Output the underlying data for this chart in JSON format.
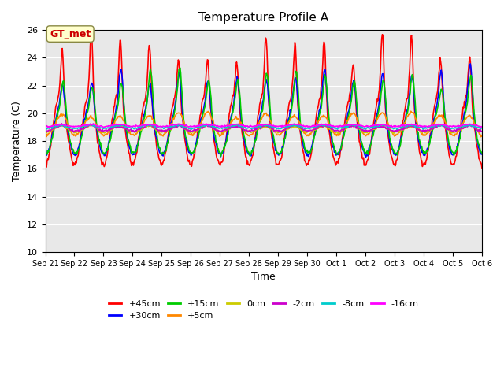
{
  "title": "Temperature Profile A",
  "xlabel": "Time",
  "ylabel": "Temperature (C)",
  "ylim": [
    10,
    26
  ],
  "xlim_days": 15,
  "annotation": "GT_met",
  "annotation_color": "#cc0000",
  "annotation_bg": "#ffffcc",
  "background_color": "#e8e8e8",
  "series": [
    {
      "label": "+45cm",
      "color": "#ff0000",
      "lw": 1.2
    },
    {
      "label": "+30cm",
      "color": "#0000ff",
      "lw": 1.2
    },
    {
      "label": "+15cm",
      "color": "#00cc00",
      "lw": 1.2
    },
    {
      "label": "+5cm",
      "color": "#ff8800",
      "lw": 1.2
    },
    {
      "label": "0cm",
      "color": "#cccc00",
      "lw": 1.2
    },
    {
      "label": "-2cm",
      "color": "#cc00cc",
      "lw": 1.2
    },
    {
      "label": "-8cm",
      "color": "#00cccc",
      "lw": 1.2
    },
    {
      "label": "-16cm",
      "color": "#ff00ff",
      "lw": 1.2
    }
  ],
  "tick_labels": [
    "Sep 21",
    "Sep 22",
    "Sep 23",
    "Sep 24",
    "Sep 25",
    "Sep 26",
    "Sep 27",
    "Sep 28",
    "Sep 29",
    "Sep 30",
    "Oct 1",
    "Oct 2",
    "Oct 3",
    "Oct 4",
    "Oct 5",
    "Oct 6"
  ]
}
